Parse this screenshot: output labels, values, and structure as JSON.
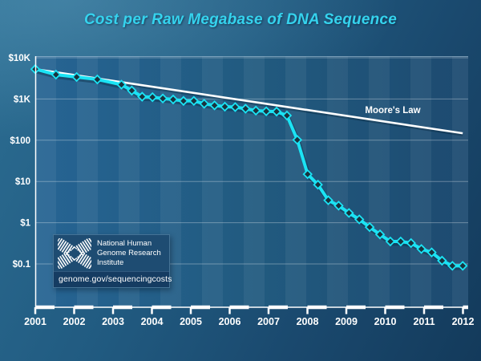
{
  "chart_data": {
    "type": "line",
    "title": "Cost per Raw Megabase of DNA Sequence",
    "y_axis": {
      "scale": "log",
      "ticks": [
        {
          "label": "$10K",
          "value": 10000
        },
        {
          "label": "$1K",
          "value": 1000
        },
        {
          "label": "$100",
          "value": 100
        },
        {
          "label": "$10",
          "value": 10
        },
        {
          "label": "$1",
          "value": 1
        },
        {
          "label": "$0.1",
          "value": 0.1
        }
      ]
    },
    "x_axis": {
      "ticks": [
        "2001",
        "2002",
        "2003",
        "2004",
        "2005",
        "2006",
        "2007",
        "2008",
        "2009",
        "2010",
        "2011",
        "2012"
      ]
    },
    "series": [
      {
        "name": "Cost per raw megabase of DNA sequence (USD)",
        "color": "#1be3f4",
        "points": [
          {
            "date": "2001-09",
            "value": 5292.39
          },
          {
            "date": "2002-03",
            "value": 3898.64
          },
          {
            "date": "2002-09",
            "value": 3413.8
          },
          {
            "date": "2003-03",
            "value": 2986.2
          },
          {
            "date": "2003-10",
            "value": 2230.98
          },
          {
            "date": "2004-01",
            "value": 1598.91
          },
          {
            "date": "2004-04",
            "value": 1135.7
          },
          {
            "date": "2004-07",
            "value": 1107.46
          },
          {
            "date": "2004-10",
            "value": 1028.85
          },
          {
            "date": "2005-01",
            "value": 974.16
          },
          {
            "date": "2005-04",
            "value": 897.76
          },
          {
            "date": "2005-07",
            "value": 898.9
          },
          {
            "date": "2005-10",
            "value": 766.73
          },
          {
            "date": "2006-01",
            "value": 699.2
          },
          {
            "date": "2006-04",
            "value": 651.81
          },
          {
            "date": "2006-07",
            "value": 636.41
          },
          {
            "date": "2006-10",
            "value": 581.92
          },
          {
            "date": "2007-01",
            "value": 522.71
          },
          {
            "date": "2007-04",
            "value": 502.61
          },
          {
            "date": "2007-07",
            "value": 495.96
          },
          {
            "date": "2007-10",
            "value": 397.09
          },
          {
            "date": "2008-01",
            "value": 102.13
          },
          {
            "date": "2008-04",
            "value": 15.03
          },
          {
            "date": "2008-07",
            "value": 8.36
          },
          {
            "date": "2008-10",
            "value": 3.5
          },
          {
            "date": "2009-01",
            "value": 2.59
          },
          {
            "date": "2009-04",
            "value": 1.72
          },
          {
            "date": "2009-07",
            "value": 1.2
          },
          {
            "date": "2009-10",
            "value": 0.78
          },
          {
            "date": "2010-01",
            "value": 0.52
          },
          {
            "date": "2010-04",
            "value": 0.35
          },
          {
            "date": "2010-07",
            "value": 0.35
          },
          {
            "date": "2010-10",
            "value": 0.32
          },
          {
            "date": "2011-01",
            "value": 0.23
          },
          {
            "date": "2011-04",
            "value": 0.19
          },
          {
            "date": "2011-07",
            "value": 0.12
          },
          {
            "date": "2011-10",
            "value": 0.09
          },
          {
            "date": "2012-01",
            "value": 0.09
          }
        ]
      }
    ],
    "moores_law": {
      "label": "Moore's Law",
      "start_date": "2001-09",
      "start_value": 5292.39,
      "halves_every_years": 2,
      "end_date": "2012-01"
    },
    "legend_position": "none",
    "grid": "horizontal-decades"
  },
  "logo": {
    "org_lines": [
      "National Human",
      "Genome Research",
      "Institute"
    ],
    "url": "genome.gov/sequencingcosts"
  },
  "colors": {
    "title": "#35d3ee",
    "series_line": "#1be3f4",
    "marker_fill": "#1a333f",
    "moore_line": "#ffffff",
    "axis_text": "#ffffff"
  }
}
